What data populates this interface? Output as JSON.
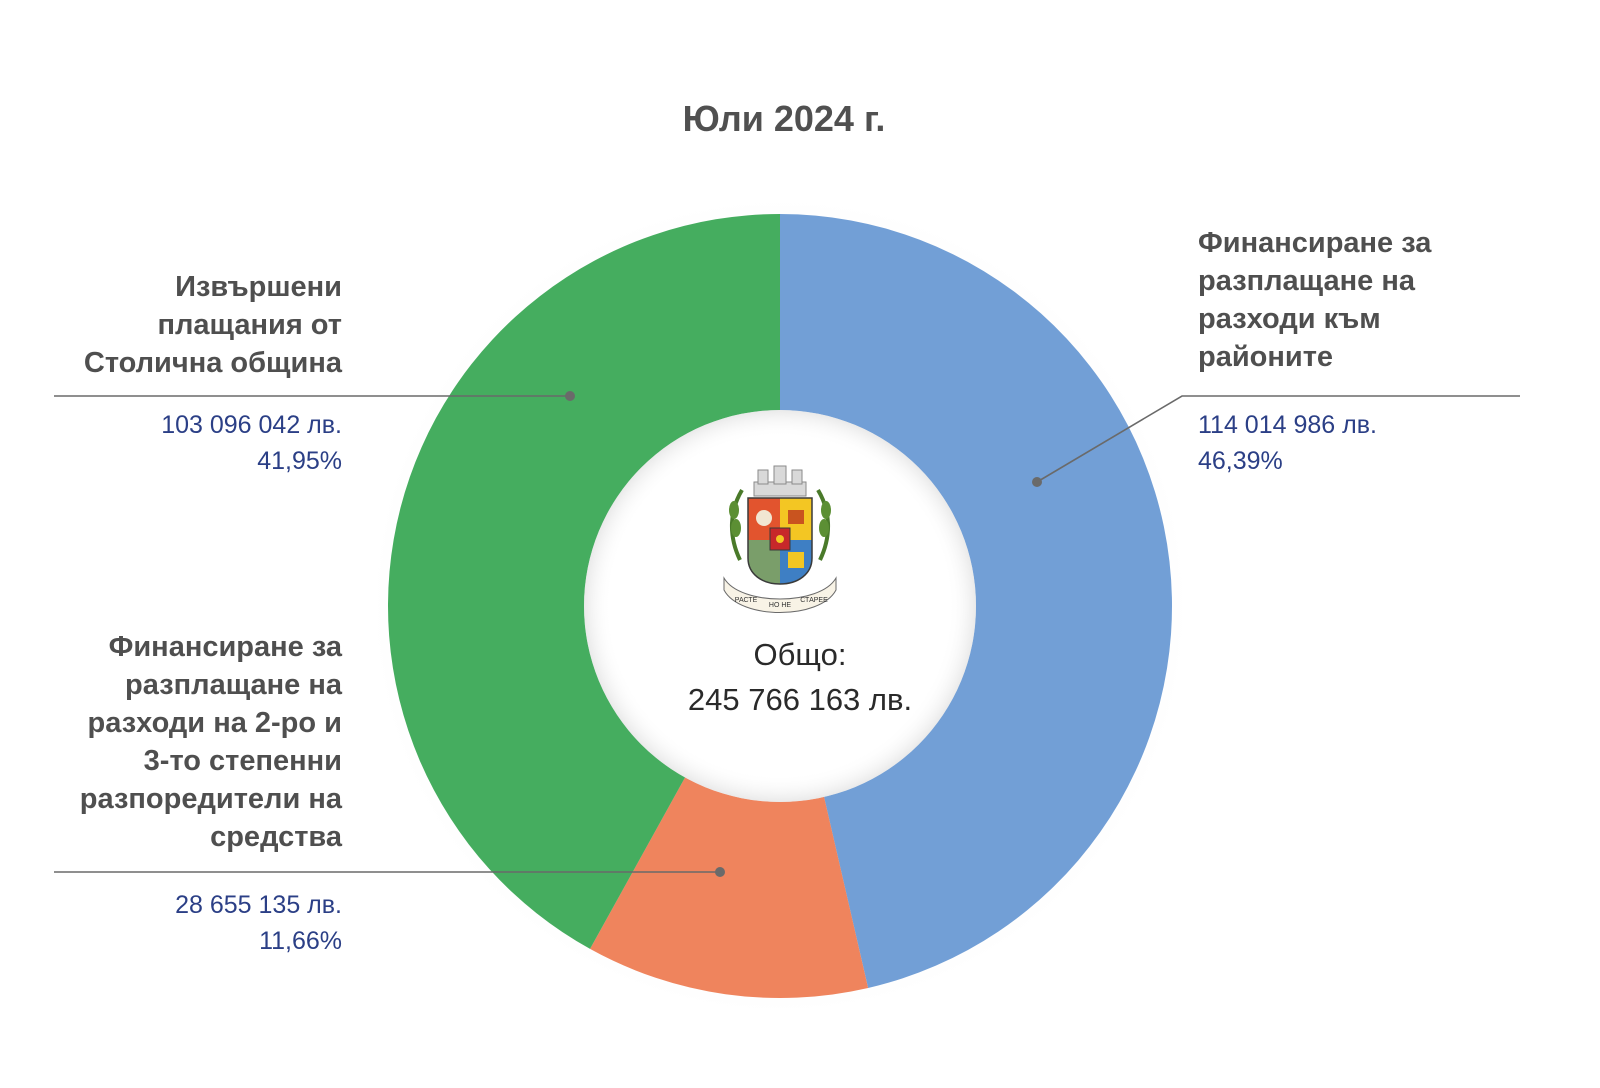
{
  "title": "Юли  2024 г.",
  "center": {
    "total_label": "Общо:",
    "total_value": "245 766 163 лв.",
    "emblem_motto_left": "РАСТЕ",
    "emblem_motto_mid": "НО НЕ",
    "emblem_motto_right": "СТАРЕЕ"
  },
  "colors": {
    "districts": "#729fd6",
    "secondary_spenders": "#ef845d",
    "municipality": "#45ad5f",
    "label_text": "#4f4f4f",
    "value_text": "#2b3f86"
  },
  "chart_data": {
    "type": "pie",
    "title": "Юли  2024 г.",
    "donut": true,
    "slices": [
      {
        "label": "Финансиране за разплащане на разходи към районите",
        "value": 114014986,
        "value_text": "114 014 986 лв.",
        "percent": 46.39,
        "percent_text": "46,39%",
        "color": "#729fd6"
      },
      {
        "label": "Финансиране за разплащане на разходи на 2-ро и 3-то степенни разпоредители на средства",
        "value": 28655135,
        "value_text": "28 655 135 лв.",
        "percent": 11.66,
        "percent_text": "11,66%",
        "color": "#ef845d"
      },
      {
        "label": "Извършени плащания от Столична община",
        "value": 103096042,
        "value_text": "103 096 042 лв.",
        "percent": 41.95,
        "percent_text": "41,95%",
        "color": "#45ad5f"
      }
    ],
    "total": 245766163,
    "total_text": "245 766 163 лв."
  },
  "labels": {
    "districts": {
      "lines": [
        "Финансиране за",
        "разплащане на",
        "разходи към",
        "районите"
      ],
      "amount": "114 014 986 лв.",
      "percent": "46,39%"
    },
    "municipality": {
      "lines": [
        "Извършени",
        "плащания от",
        "Столична община"
      ],
      "amount": "103 096 042 лв.",
      "percent": "41,95%"
    },
    "secondary": {
      "lines": [
        "Финансиране за",
        "разплащане на",
        "разходи на 2-ро и",
        "3-то степенни",
        "разпоредители на",
        "средства"
      ],
      "amount": "28 655 135 лв.",
      "percent": "11,66%"
    }
  }
}
